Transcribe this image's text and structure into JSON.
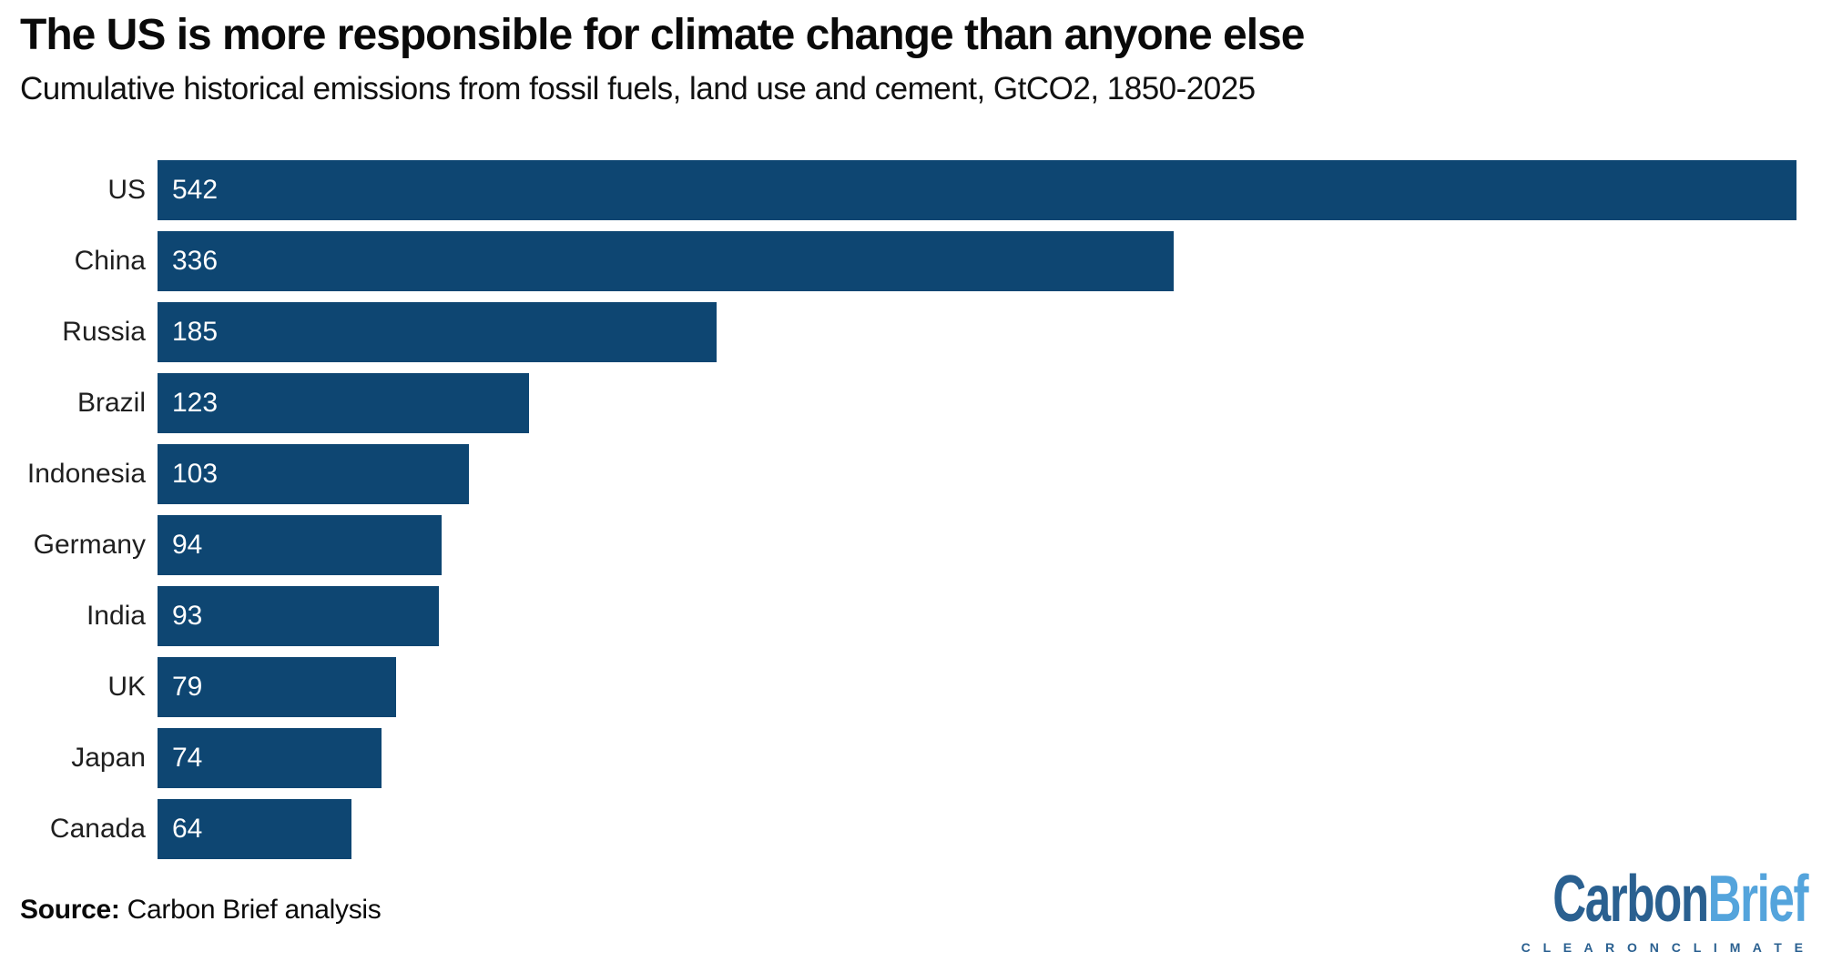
{
  "header": {
    "title": "The US is more responsible for climate change than anyone else",
    "subtitle": "Cumulative historical emissions from fossil fuels, land use and cement, GtCO2, 1850-2025"
  },
  "chart_data": {
    "type": "bar",
    "orientation": "horizontal",
    "categories": [
      "US",
      "China",
      "Russia",
      "Brazil",
      "Indonesia",
      "Germany",
      "India",
      "UK",
      "Japan",
      "Canada"
    ],
    "values": [
      542,
      336,
      185,
      123,
      103,
      94,
      93,
      79,
      74,
      64
    ],
    "title": "The US is more responsible for climate change than anyone else",
    "subtitle": "Cumulative historical emissions from fossil fuels, land use and cement, GtCO2, 1850-2025",
    "xlabel": "",
    "ylabel": "",
    "xlim": [
      0,
      542
    ],
    "grid": false,
    "legend": false,
    "value_labels_shown": true
  },
  "footer": {
    "source_label": "Source:",
    "source_text": " Carbon Brief analysis"
  },
  "logo": {
    "part1": "Carbon",
    "part2": "Brief",
    "tagline": "C L E A R   O N   C L I M A T E"
  },
  "colors": {
    "bar": "#0E4672",
    "value_text": "#ffffff",
    "category_text": "#1f1f1f",
    "title_text": "#0a0a0a",
    "logo_dark": "#2A6090",
    "logo_light": "#54A4DC",
    "tagline_text": "#2A6090"
  }
}
